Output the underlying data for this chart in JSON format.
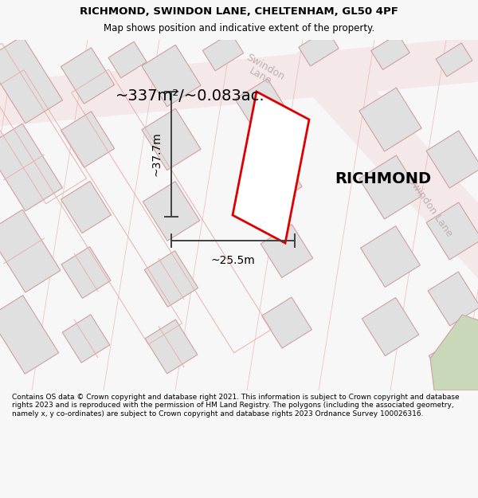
{
  "title_line1": "RICHMOND, SWINDON LANE, CHELTENHAM, GL50 4PF",
  "title_line2": "Map shows position and indicative extent of the property.",
  "footer_text": "Contains OS data © Crown copyright and database right 2021. This information is subject to Crown copyright and database rights 2023 and is reproduced with the permission of HM Land Registry. The polygons (including the associated geometry, namely x, y co-ordinates) are subject to Crown copyright and database rights 2023 Ordnance Survey 100026316.",
  "property_label": "RICHMOND",
  "area_label": "~337m²/~0.083ac.",
  "width_label": "~25.5m",
  "height_label": "~37.7m",
  "bg_color": "#f7f7f7",
  "map_bg": "#ffffff",
  "building_fill": "#e0e0e0",
  "building_edge": "#d0a0a0",
  "parcel_edge": "#e8b0b0",
  "road_label_color": "#c0b0b0",
  "property_color": "#dd0000",
  "green_fill": "#c8d8b8",
  "dim_color": "#404040",
  "title_color": "#000000",
  "footer_color": "#000000"
}
